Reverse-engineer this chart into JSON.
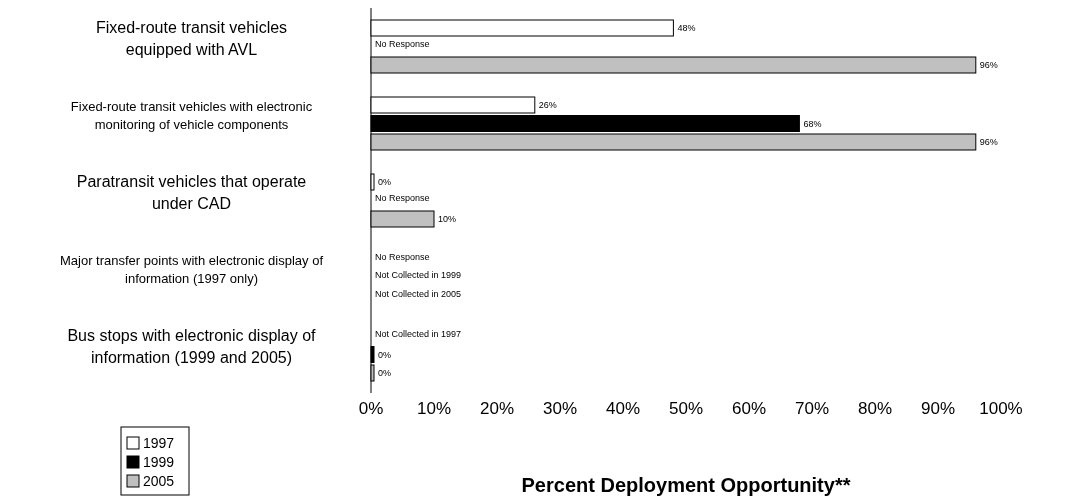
{
  "chart_data": {
    "type": "bar",
    "orientation": "horizontal",
    "xlabel": "Percent Deployment Opportunity**",
    "categories": [
      "Fixed-route transit vehicles equipped with AVL",
      "Fixed-route transit vehicles with electronic monitoring of vehicle components",
      "Paratransit vehicles that operate under CAD",
      "Major transfer points with electronic display of information (1997 only)",
      "Bus stops with electronic display of information (1999 and 2005)"
    ],
    "series": [
      {
        "name": "1997",
        "color": "#ffffff",
        "values": [
          48,
          26,
          0,
          null,
          null
        ],
        "value_labels": [
          "48%",
          "26%",
          "0%",
          "No Response",
          "Not Collected in 1997"
        ]
      },
      {
        "name": "1999",
        "color": "#000000",
        "values": [
          null,
          68,
          null,
          null,
          0
        ],
        "value_labels": [
          "No Response",
          "68%",
          "No Response",
          "Not Collected in 1999",
          "0%"
        ]
      },
      {
        "name": "2005",
        "color": "#c0c0c0",
        "values": [
          96,
          96,
          10,
          null,
          0
        ],
        "value_labels": [
          "96%",
          "96%",
          "10%",
          "Not Collected in 2005",
          "0%"
        ]
      }
    ],
    "xlim": [
      0,
      100
    ],
    "xticks": [
      {
        "value": 0,
        "label": "0%"
      },
      {
        "value": 10,
        "label": "10%"
      },
      {
        "value": 20,
        "label": "20%"
      },
      {
        "value": 30,
        "label": "30%"
      },
      {
        "value": 40,
        "label": "40%"
      },
      {
        "value": 50,
        "label": "50%"
      },
      {
        "value": 60,
        "label": "60%"
      },
      {
        "value": 70,
        "label": "70%"
      },
      {
        "value": 80,
        "label": "80%"
      },
      {
        "value": 90,
        "label": "90%"
      },
      {
        "value": 100,
        "label": "100%"
      }
    ],
    "legend": "bottom left",
    "grid": false
  }
}
